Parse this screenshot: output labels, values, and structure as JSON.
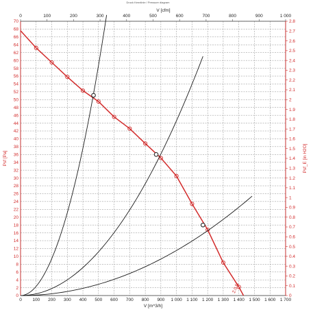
{
  "chart_data": {
    "type": "line",
    "title": "Druck Kennlinie / Pressure diagram",
    "colors": {
      "pressure": "#d22b2b",
      "system": "#1a1a1a",
      "grid": "#8a8a8a",
      "frame": "#555555"
    },
    "x_bottom": {
      "label": "V [m^3/h]",
      "range": [
        0,
        1700
      ],
      "ticks": [
        "0",
        "100",
        "200",
        "300",
        "400",
        "500",
        "600",
        "700",
        "800",
        "900",
        "1 000",
        "1 100",
        "1 200",
        "1 300",
        "1 400",
        "1 500",
        "1 600",
        "1 700"
      ]
    },
    "x_top": {
      "label": "V [cfm]",
      "range": [
        0,
        1000
      ],
      "ticks": [
        "0",
        "100",
        "200",
        "300",
        "400",
        "500",
        "600",
        "700",
        "800",
        "900",
        "1 000"
      ]
    },
    "y_left": {
      "label": "Psf [Pa]",
      "range": [
        0,
        70
      ],
      "ticks": [
        "0",
        "2",
        "4",
        "6",
        "8",
        "10",
        "12",
        "14",
        "16",
        "18",
        "20",
        "22",
        "24",
        "26",
        "28",
        "30",
        "32",
        "34",
        "36",
        "38",
        "40",
        "42",
        "44",
        "46",
        "48",
        "50",
        "52",
        "54",
        "56",
        "58",
        "60",
        "62",
        "64",
        "66",
        "68",
        "70"
      ]
    },
    "y_right": {
      "label": "Psf_E [in H2O]",
      "range": [
        0,
        2.8
      ],
      "ticks": [
        "0",
        "0.1",
        "0.2",
        "0.3",
        "0.4",
        "0.5",
        "0.6",
        "0.7",
        "0.8",
        "0.9",
        "1",
        "1.1",
        "1.2",
        "1.3",
        "1.4",
        "1.5",
        "1.6",
        "1.7",
        "1.8",
        "1.9",
        "2",
        "2.1",
        "2.2",
        "2.3",
        "2.4",
        "2.5",
        "2.6",
        "2.7",
        "2.8"
      ]
    },
    "grid": true,
    "series": [
      {
        "type": "fan_curve",
        "points": [
          [
            0,
            67.6
          ],
          [
            100,
            63.2
          ],
          [
            200,
            59.5
          ],
          [
            300,
            55.8
          ],
          [
            400,
            52.3
          ],
          [
            500,
            49.5
          ],
          [
            600,
            45.6
          ],
          [
            700,
            42.6
          ],
          [
            800,
            38.8
          ],
          [
            900,
            35.1
          ],
          [
            1000,
            30.5
          ],
          [
            1100,
            23.4
          ],
          [
            1200,
            16.8
          ],
          [
            1300,
            8.4
          ],
          [
            1400,
            2.2
          ],
          [
            1430,
            0
          ]
        ],
        "markers": [
          [
            100,
            63.2
          ],
          [
            200,
            59.5
          ],
          [
            300,
            55.8
          ],
          [
            400,
            52.3
          ],
          [
            500,
            49.5
          ],
          [
            600,
            45.6
          ],
          [
            700,
            42.6
          ],
          [
            800,
            38.8
          ],
          [
            900,
            35.1
          ],
          [
            1000,
            30.5
          ],
          [
            1100,
            23.4
          ],
          [
            1200,
            16.8
          ],
          [
            1300,
            8.4
          ],
          [
            1400,
            2.2
          ]
        ],
        "end_label": "2.0 N"
      },
      {
        "type": "system_curve",
        "k": 0.000235,
        "x_max": 552
      },
      {
        "type": "system_curve",
        "k": 4.46e-05,
        "x_max": 1170
      },
      {
        "type": "system_curve",
        "k": 1.15e-05,
        "x_max": 1485
      }
    ],
    "operating_points": [
      [
        468,
        51.1
      ],
      [
        870,
        36.0
      ],
      [
        1170,
        18.0
      ]
    ]
  }
}
